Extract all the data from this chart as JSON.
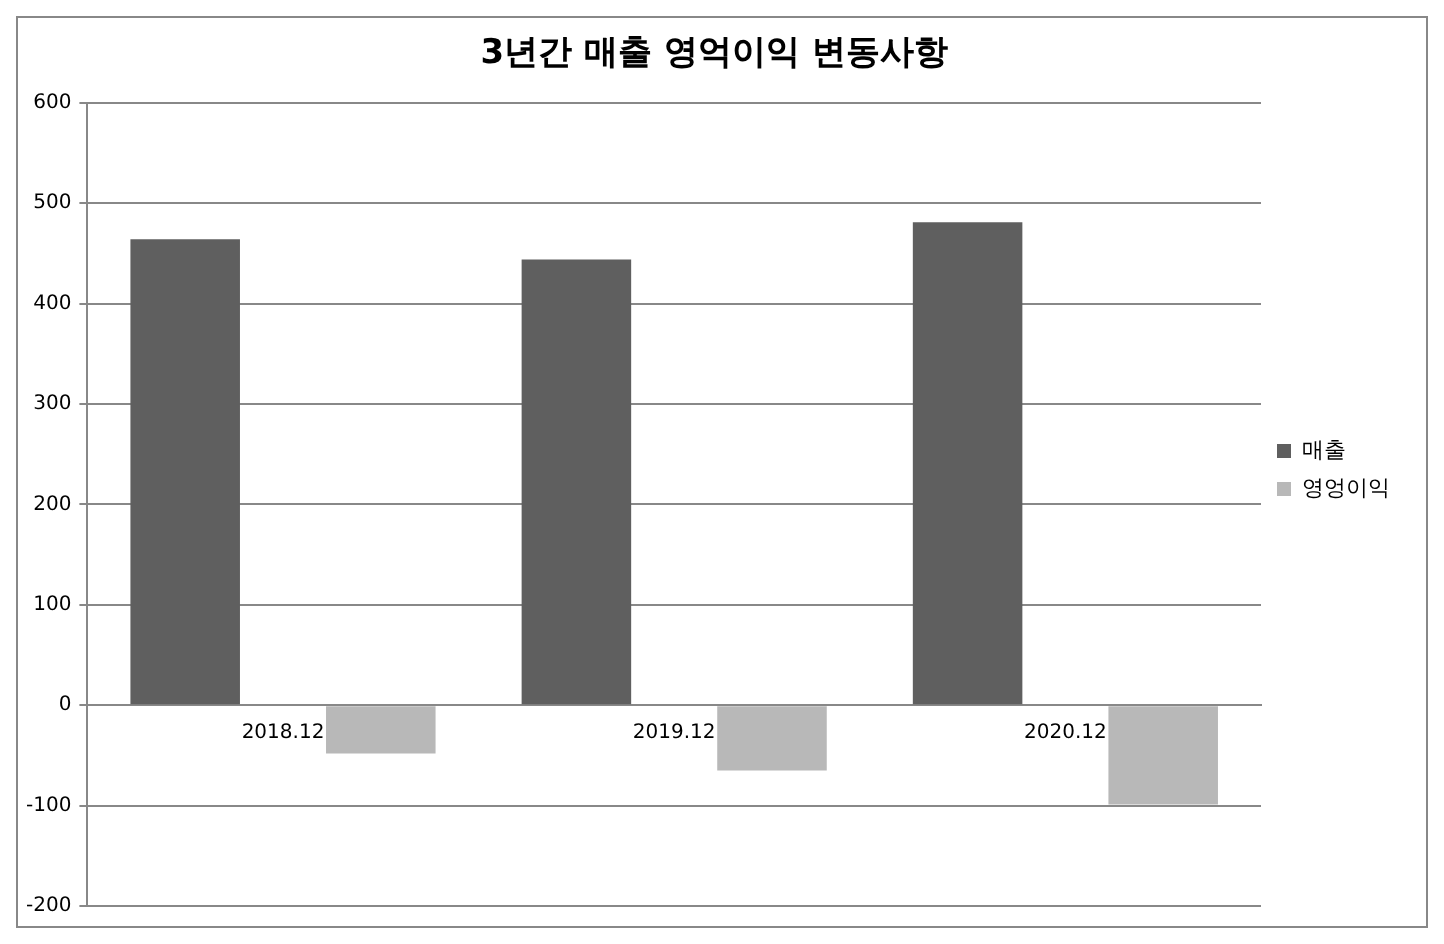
{
  "chart_data": {
    "type": "bar",
    "title": "3년간 매출 영억이익 변동사항",
    "categories": [
      "2018.12",
      "2019.12",
      "2020.12"
    ],
    "series": [
      {
        "name": "매출",
        "color": "#5f5f5f",
        "values": [
          464,
          444,
          481
        ]
      },
      {
        "name": "영엉이익",
        "color": "#b8b8b8",
        "values": [
          -48,
          -65,
          -99
        ]
      }
    ],
    "ylim": [
      -200,
      600
    ],
    "yticks": [
      -200,
      -100,
      0,
      100,
      200,
      300,
      400,
      500,
      600
    ],
    "grid": "y",
    "legend": "right"
  }
}
